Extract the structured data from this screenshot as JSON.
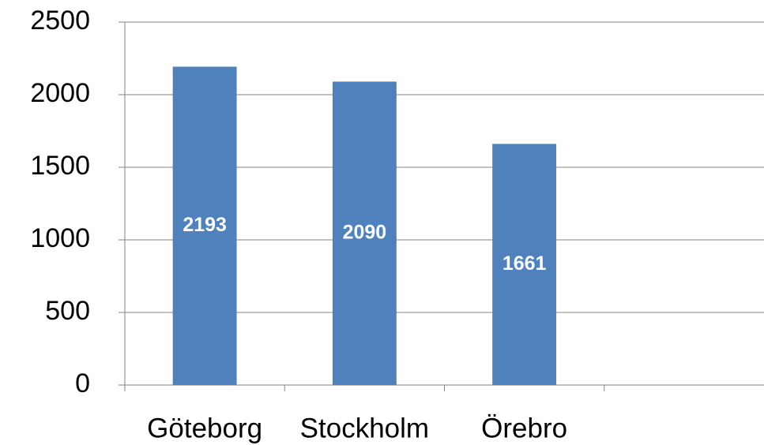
{
  "chart_data": {
    "type": "bar",
    "categories": [
      "Göteborg",
      "Stockholm",
      "Örebro",
      null
    ],
    "values": [
      2193,
      2090,
      1661,
      null
    ],
    "color": "#4f81bd",
    "ylim": [
      0,
      2500
    ],
    "yticks": [
      0,
      500,
      1000,
      1500,
      2000,
      2500
    ],
    "grid": true
  }
}
